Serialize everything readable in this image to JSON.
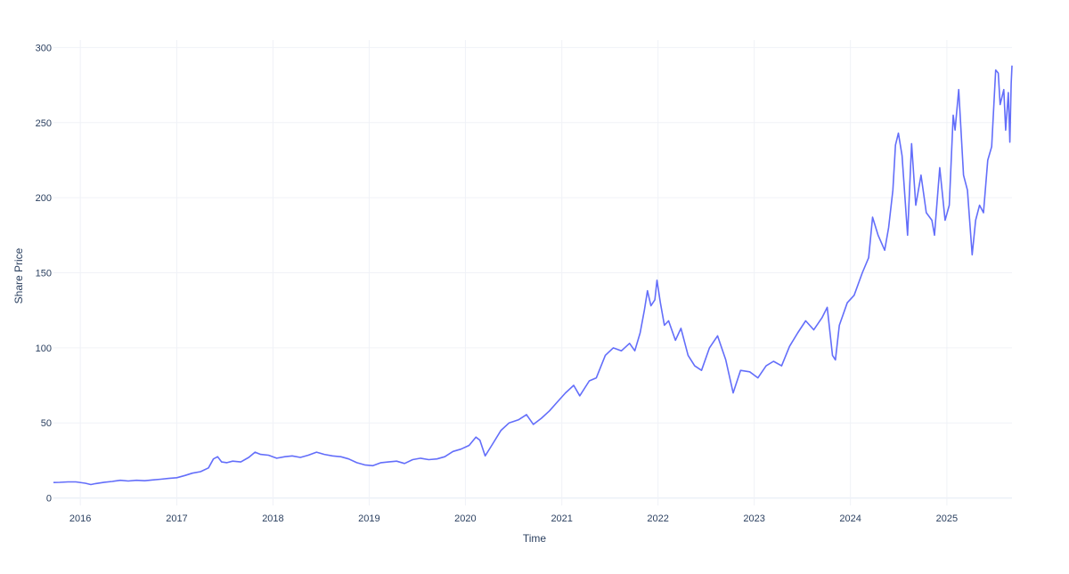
{
  "chart_data": {
    "type": "line",
    "title": "",
    "xlabel": "Time",
    "ylabel": "Share Price",
    "xlim": [
      "2015-09-21",
      "2025-09-05"
    ],
    "ylim": [
      -5,
      305
    ],
    "grid": true,
    "legend": "none",
    "x_ticks": [
      "2016",
      "2017",
      "2018",
      "2019",
      "2020",
      "2021",
      "2022",
      "2023",
      "2024",
      "2025"
    ],
    "y_ticks": [
      0,
      50,
      100,
      150,
      200,
      250,
      300
    ],
    "series": [
      {
        "color": "#636efa",
        "points": [
          [
            "2015-09-21",
            10.3
          ],
          [
            "2015-10-15",
            10.4
          ],
          [
            "2015-11-15",
            10.7
          ],
          [
            "2015-12-15",
            10.7
          ],
          [
            "2016-01-20",
            9.8
          ],
          [
            "2016-02-10",
            8.9
          ],
          [
            "2016-02-28",
            9.6
          ],
          [
            "2016-04-01",
            10.5
          ],
          [
            "2016-05-01",
            11.0
          ],
          [
            "2016-06-01",
            11.8
          ],
          [
            "2016-07-01",
            11.3
          ],
          [
            "2016-08-01",
            11.8
          ],
          [
            "2016-09-01",
            11.5
          ],
          [
            "2016-10-01",
            12.0
          ],
          [
            "2016-11-01",
            12.5
          ],
          [
            "2016-12-01",
            13.0
          ],
          [
            "2017-01-01",
            13.5
          ],
          [
            "2017-02-01",
            15.0
          ],
          [
            "2017-03-01",
            16.5
          ],
          [
            "2017-04-01",
            17.5
          ],
          [
            "2017-05-01",
            20.0
          ],
          [
            "2017-05-20",
            26.0
          ],
          [
            "2017-06-05",
            27.5
          ],
          [
            "2017-06-20",
            24.0
          ],
          [
            "2017-07-10",
            23.5
          ],
          [
            "2017-08-01",
            24.5
          ],
          [
            "2017-09-01",
            24.0
          ],
          [
            "2017-10-01",
            27.0
          ],
          [
            "2017-10-25",
            30.5
          ],
          [
            "2017-11-15",
            29.0
          ],
          [
            "2017-12-15",
            28.5
          ],
          [
            "2018-01-15",
            26.5
          ],
          [
            "2018-02-15",
            27.5
          ],
          [
            "2018-03-15",
            28.0
          ],
          [
            "2018-04-15",
            27.0
          ],
          [
            "2018-05-15",
            28.5
          ],
          [
            "2018-06-15",
            30.5
          ],
          [
            "2018-07-15",
            29.0
          ],
          [
            "2018-08-15",
            28.0
          ],
          [
            "2018-09-15",
            27.5
          ],
          [
            "2018-10-15",
            26.0
          ],
          [
            "2018-11-15",
            23.5
          ],
          [
            "2018-12-15",
            22.0
          ],
          [
            "2019-01-15",
            21.5
          ],
          [
            "2019-02-15",
            23.5
          ],
          [
            "2019-03-15",
            24.0
          ],
          [
            "2019-04-15",
            24.5
          ],
          [
            "2019-05-15",
            23.0
          ],
          [
            "2019-06-15",
            25.5
          ],
          [
            "2019-07-15",
            26.5
          ],
          [
            "2019-08-15",
            25.5
          ],
          [
            "2019-09-15",
            26.0
          ],
          [
            "2019-10-15",
            27.5
          ],
          [
            "2019-11-15",
            31.0
          ],
          [
            "2019-12-15",
            32.5
          ],
          [
            "2020-01-15",
            35.0
          ],
          [
            "2020-02-10",
            40.5
          ],
          [
            "2020-02-25",
            38.5
          ],
          [
            "2020-03-16",
            28.0
          ],
          [
            "2020-04-10",
            35.0
          ],
          [
            "2020-05-15",
            45.0
          ],
          [
            "2020-06-15",
            50.0
          ],
          [
            "2020-07-20",
            52.0
          ],
          [
            "2020-08-20",
            55.5
          ],
          [
            "2020-09-15",
            49.0
          ],
          [
            "2020-10-15",
            53.0
          ],
          [
            "2020-11-15",
            58.0
          ],
          [
            "2020-12-15",
            64.0
          ],
          [
            "2021-01-15",
            70.0
          ],
          [
            "2021-02-15",
            75.0
          ],
          [
            "2021-03-10",
            68.0
          ],
          [
            "2021-04-15",
            78.0
          ],
          [
            "2021-05-12",
            80.0
          ],
          [
            "2021-06-15",
            95.0
          ],
          [
            "2021-07-15",
            100.0
          ],
          [
            "2021-08-15",
            98.0
          ],
          [
            "2021-09-15",
            103.0
          ],
          [
            "2021-10-05",
            98.0
          ],
          [
            "2021-10-25",
            110.0
          ],
          [
            "2021-11-10",
            125.0
          ],
          [
            "2021-11-22",
            138.0
          ],
          [
            "2021-12-05",
            128.0
          ],
          [
            "2021-12-20",
            132.0
          ],
          [
            "2021-12-28",
            145.0
          ],
          [
            "2022-01-10",
            130.0
          ],
          [
            "2022-01-25",
            115.0
          ],
          [
            "2022-02-10",
            118.0
          ],
          [
            "2022-03-08",
            105.0
          ],
          [
            "2022-03-29",
            113.0
          ],
          [
            "2022-04-25",
            95.0
          ],
          [
            "2022-05-20",
            88.0
          ],
          [
            "2022-06-15",
            85.0
          ],
          [
            "2022-07-15",
            100.0
          ],
          [
            "2022-08-15",
            108.0
          ],
          [
            "2022-09-15",
            92.0
          ],
          [
            "2022-10-13",
            70.0
          ],
          [
            "2022-11-10",
            85.0
          ],
          [
            "2022-12-15",
            84.0
          ],
          [
            "2023-01-15",
            80.0
          ],
          [
            "2023-02-15",
            88.0
          ],
          [
            "2023-03-15",
            91.0
          ],
          [
            "2023-04-15",
            88.0
          ],
          [
            "2023-05-15",
            101.0
          ],
          [
            "2023-06-15",
            110.0
          ],
          [
            "2023-07-15",
            118.0
          ],
          [
            "2023-08-15",
            112.0
          ],
          [
            "2023-09-15",
            120.0
          ],
          [
            "2023-10-05",
            127.0
          ],
          [
            "2023-10-25",
            95.0
          ],
          [
            "2023-11-05",
            92.0
          ],
          [
            "2023-11-20",
            115.0
          ],
          [
            "2023-12-20",
            130.0
          ],
          [
            "2024-01-15",
            135.0
          ],
          [
            "2024-02-15",
            150.0
          ],
          [
            "2024-03-10",
            160.0
          ],
          [
            "2024-03-25",
            187.0
          ],
          [
            "2024-04-15",
            175.0
          ],
          [
            "2024-05-10",
            165.0
          ],
          [
            "2024-05-25",
            180.0
          ],
          [
            "2024-06-10",
            205.0
          ],
          [
            "2024-06-20",
            235.0
          ],
          [
            "2024-07-01",
            243.0
          ],
          [
            "2024-07-15",
            228.0
          ],
          [
            "2024-08-05",
            175.0
          ],
          [
            "2024-08-20",
            236.0
          ],
          [
            "2024-09-05",
            195.0
          ],
          [
            "2024-09-25",
            215.0
          ],
          [
            "2024-10-15",
            190.0
          ],
          [
            "2024-11-05",
            185.0
          ],
          [
            "2024-11-15",
            175.0
          ],
          [
            "2024-12-05",
            220.0
          ],
          [
            "2024-12-25",
            185.0
          ],
          [
            "2025-01-10",
            195.0
          ],
          [
            "2025-01-25",
            255.0
          ],
          [
            "2025-02-01",
            245.0
          ],
          [
            "2025-02-15",
            272.0
          ],
          [
            "2025-03-05",
            215.0
          ],
          [
            "2025-03-20",
            205.0
          ],
          [
            "2025-04-07",
            162.0
          ],
          [
            "2025-04-20",
            185.0
          ],
          [
            "2025-05-05",
            195.0
          ],
          [
            "2025-05-20",
            190.0
          ],
          [
            "2025-06-05",
            225.0
          ],
          [
            "2025-06-20",
            234.0
          ],
          [
            "2025-07-05",
            285.0
          ],
          [
            "2025-07-15",
            283.0
          ],
          [
            "2025-07-22",
            262.0
          ],
          [
            "2025-08-05",
            272.0
          ],
          [
            "2025-08-12",
            245.0
          ],
          [
            "2025-08-22",
            270.0
          ],
          [
            "2025-08-28",
            237.0
          ],
          [
            "2025-09-02",
            276.0
          ],
          [
            "2025-09-05",
            288.0
          ]
        ]
      }
    ]
  }
}
